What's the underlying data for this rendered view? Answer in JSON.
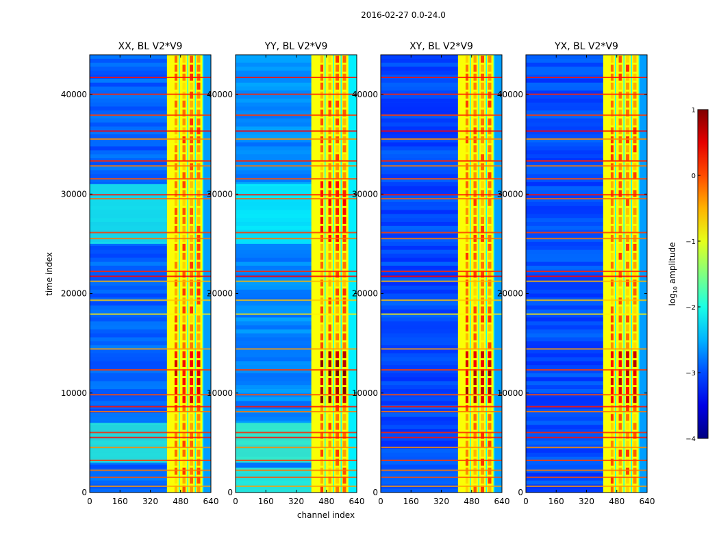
{
  "chart_data": {
    "type": "heatmap",
    "suptitle": "2016-02-27 0.0-24.0",
    "xlabel": "channel index",
    "ylabel": "time index",
    "xlim": [
      0,
      640
    ],
    "ylim": [
      0,
      44000
    ],
    "xticks": [
      0,
      160,
      320,
      480,
      640
    ],
    "xtick_labels": [
      "0",
      "160",
      "320",
      "480",
      "640"
    ],
    "yticks": [
      0,
      10000,
      20000,
      30000,
      40000
    ],
    "ytick_labels": [
      "0",
      "10000",
      "20000",
      "30000",
      "40000"
    ],
    "colormap": "jet",
    "panels": [
      {
        "title": "XX, BL V2*V9",
        "band_start": 408,
        "band_end": 600,
        "background_level": -2.9,
        "quiet_band_level": -2.6,
        "cyan_rows": [
          [
            3000,
            7000,
            -1.9
          ],
          [
            25000,
            31000,
            -2.0
          ]
        ],
        "bright_band_rows": [
          [
            9000,
            14000,
            0.4
          ]
        ]
      },
      {
        "title": "YY, BL V2*V9",
        "band_start": 400,
        "band_end": 600,
        "background_level": -2.7,
        "quiet_band_level": -2.2,
        "cyan_rows": [
          [
            3000,
            7000,
            -1.8
          ],
          [
            25000,
            31000,
            -2.1
          ],
          [
            0,
            2500,
            -1.9
          ]
        ],
        "bright_band_rows": [
          [
            9000,
            14000,
            0.8
          ],
          [
            25000,
            31000,
            0.2
          ]
        ]
      },
      {
        "title": "XY, BL V2*V9",
        "band_start": 408,
        "band_end": 600,
        "background_level": -3.0,
        "quiet_band_level": -2.6,
        "cyan_rows": [],
        "bright_band_rows": [
          [
            9000,
            14000,
            0.6
          ]
        ]
      },
      {
        "title": "YX, BL V2*V9",
        "band_start": 408,
        "band_end": 600,
        "background_level": -3.0,
        "quiet_band_level": -2.6,
        "cyan_rows": [],
        "bright_band_rows": [
          [
            9000,
            14000,
            0.5
          ]
        ]
      }
    ],
    "rfi_rows": [
      {
        "t": 41800,
        "v": 0.3
      },
      {
        "t": 40100,
        "v": 0.2
      },
      {
        "t": 38000,
        "v": 0.1
      },
      {
        "t": 36400,
        "v": 0.4
      },
      {
        "t": 35600,
        "v": -0.3
      },
      {
        "t": 33400,
        "v": 0.2
      },
      {
        "t": 32900,
        "v": -0.2
      },
      {
        "t": 31600,
        "v": 0.0
      },
      {
        "t": 30000,
        "v": 0.3
      },
      {
        "t": 29600,
        "v": -0.1
      },
      {
        "t": 26200,
        "v": 0.1
      },
      {
        "t": 25600,
        "v": -0.2
      },
      {
        "t": 22300,
        "v": 0.2
      },
      {
        "t": 21800,
        "v": 0.4
      },
      {
        "t": 21300,
        "v": -0.5
      },
      {
        "t": 19400,
        "v": -0.6
      },
      {
        "t": 18000,
        "v": -0.8
      },
      {
        "t": 14500,
        "v": -0.4
      },
      {
        "t": 12400,
        "v": 0.1
      },
      {
        "t": 9900,
        "v": 0.0
      },
      {
        "t": 8700,
        "v": 0.3
      },
      {
        "t": 8200,
        "v": -0.2
      },
      {
        "t": 6100,
        "v": 0.2
      },
      {
        "t": 5600,
        "v": 0.3
      },
      {
        "t": 4600,
        "v": -0.3
      },
      {
        "t": 3300,
        "v": 0.1
      },
      {
        "t": 2300,
        "v": -0.2
      },
      {
        "t": 1600,
        "v": 0.0
      },
      {
        "t": 700,
        "v": -0.4
      }
    ],
    "colorbar": {
      "label": "log10 amplitude",
      "label_base": "log",
      "label_sub": "10",
      "label_rest": " amplitude",
      "range": [
        -4,
        1
      ],
      "ticks": [
        1,
        0,
        -1,
        -2,
        -3,
        -4
      ],
      "tick_labels": [
        "1",
        "0",
        "−1",
        "−2",
        "−3",
        "−4"
      ]
    }
  }
}
